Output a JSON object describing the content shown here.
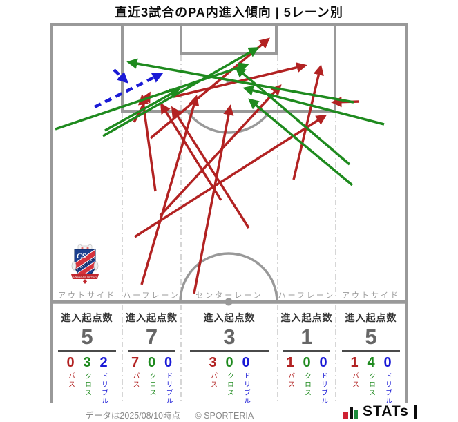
{
  "title": "直近3試合のPA内進入傾向 | 5レーン別",
  "labels": {
    "origins": "進入起点数",
    "pass": "パス",
    "cross": "クロス",
    "dribble": "ドリブル"
  },
  "colors": {
    "pass": "#b22222",
    "cross": "#1e8a1e",
    "dribble": "#1a1ad6",
    "pitch_line": "#999999",
    "lane_divider": "#bfbfbf"
  },
  "badge": {
    "team": "CONSADOLE SAPPORO",
    "initials": "CS"
  },
  "footer": {
    "data_note": "データは2025/08/10時点",
    "copyright": "© SPORTERIA",
    "brand": "STATs"
  },
  "chart_data": {
    "type": "table",
    "title": "直近3試合のPA内進入傾向 | 5レーン別",
    "description": "ハーフコート図にPA内進入の軌跡を矢印で表示。赤=パス、緑=クロス、青破線=ドリブル。",
    "legend": [
      {
        "label": "パス",
        "color": "#b22222",
        "style": "solid"
      },
      {
        "label": "クロス",
        "color": "#1e8a1e",
        "style": "solid"
      },
      {
        "label": "ドリブル",
        "color": "#1a1ad6",
        "style": "dashed"
      }
    ],
    "lanes": [
      {
        "label": "アウトサイド",
        "origins": 5,
        "pass": 0,
        "cross": 3,
        "dribble": 2
      },
      {
        "label": "ハーフレーン",
        "origins": 7,
        "pass": 7,
        "cross": 0,
        "dribble": 0
      },
      {
        "label": "センターレーン",
        "origins": 3,
        "pass": 3,
        "cross": 0,
        "dribble": 0
      },
      {
        "label": "ハーフレーン",
        "origins": 1,
        "pass": 1,
        "cross": 0,
        "dribble": 0
      },
      {
        "label": "アウトサイド",
        "origins": 5,
        "pass": 1,
        "cross": 4,
        "dribble": 0
      }
    ],
    "arrows": [
      {
        "type": "pass",
        "from": [
          225,
          277
        ],
        "to": [
          206,
          140
        ]
      },
      {
        "type": "pass",
        "from": [
          194,
          177
        ],
        "to": [
          216,
          136
        ]
      },
      {
        "type": "pass",
        "from": [
          320,
          290
        ],
        "to": [
          234,
          152
        ]
      },
      {
        "type": "pass",
        "from": [
          520,
          147
        ],
        "to": [
          483,
          148
        ]
      },
      {
        "type": "pass",
        "from": [
          218,
          200
        ],
        "to": [
          388,
          57
        ]
      },
      {
        "type": "pass",
        "from": [
          252,
          140
        ],
        "to": [
          441,
          95
        ]
      },
      {
        "type": "pass",
        "from": [
          425,
          260
        ],
        "to": [
          464,
          97
        ]
      },
      {
        "type": "pass",
        "from": [
          281,
          425
        ],
        "to": [
          333,
          155
        ]
      },
      {
        "type": "pass",
        "from": [
          205,
          412
        ],
        "to": [
          284,
          141
        ]
      },
      {
        "type": "pass",
        "from": [
          195,
          343
        ],
        "to": [
          470,
          168
        ]
      },
      {
        "type": "pass",
        "from": [
          360,
          330
        ],
        "to": [
          250,
          157
        ]
      },
      {
        "type": "pass",
        "from": [
          232,
          312
        ],
        "to": [
          405,
          125
        ]
      },
      {
        "type": "cross",
        "from": [
          152,
          189
        ],
        "to": [
          258,
          130
        ]
      },
      {
        "type": "cross",
        "from": [
          149,
          197
        ],
        "to": [
          372,
          70
        ]
      },
      {
        "type": "cross",
        "from": [
          80,
          187
        ],
        "to": [
          357,
          94
        ]
      },
      {
        "type": "cross",
        "from": [
          512,
          148
        ],
        "to": [
          187,
          90
        ]
      },
      {
        "type": "cross",
        "from": [
          506,
          238
        ],
        "to": [
          343,
          99
        ]
      },
      {
        "type": "cross",
        "from": [
          556,
          180
        ],
        "to": [
          355,
          128
        ]
      },
      {
        "type": "cross",
        "from": [
          510,
          268
        ],
        "to": [
          362,
          145
        ]
      },
      {
        "type": "dribble",
        "from": [
          165,
          101
        ],
        "to": [
          183,
          118
        ]
      },
      {
        "type": "dribble",
        "from": [
          137,
          155
        ],
        "to": [
          233,
          107
        ]
      }
    ]
  }
}
